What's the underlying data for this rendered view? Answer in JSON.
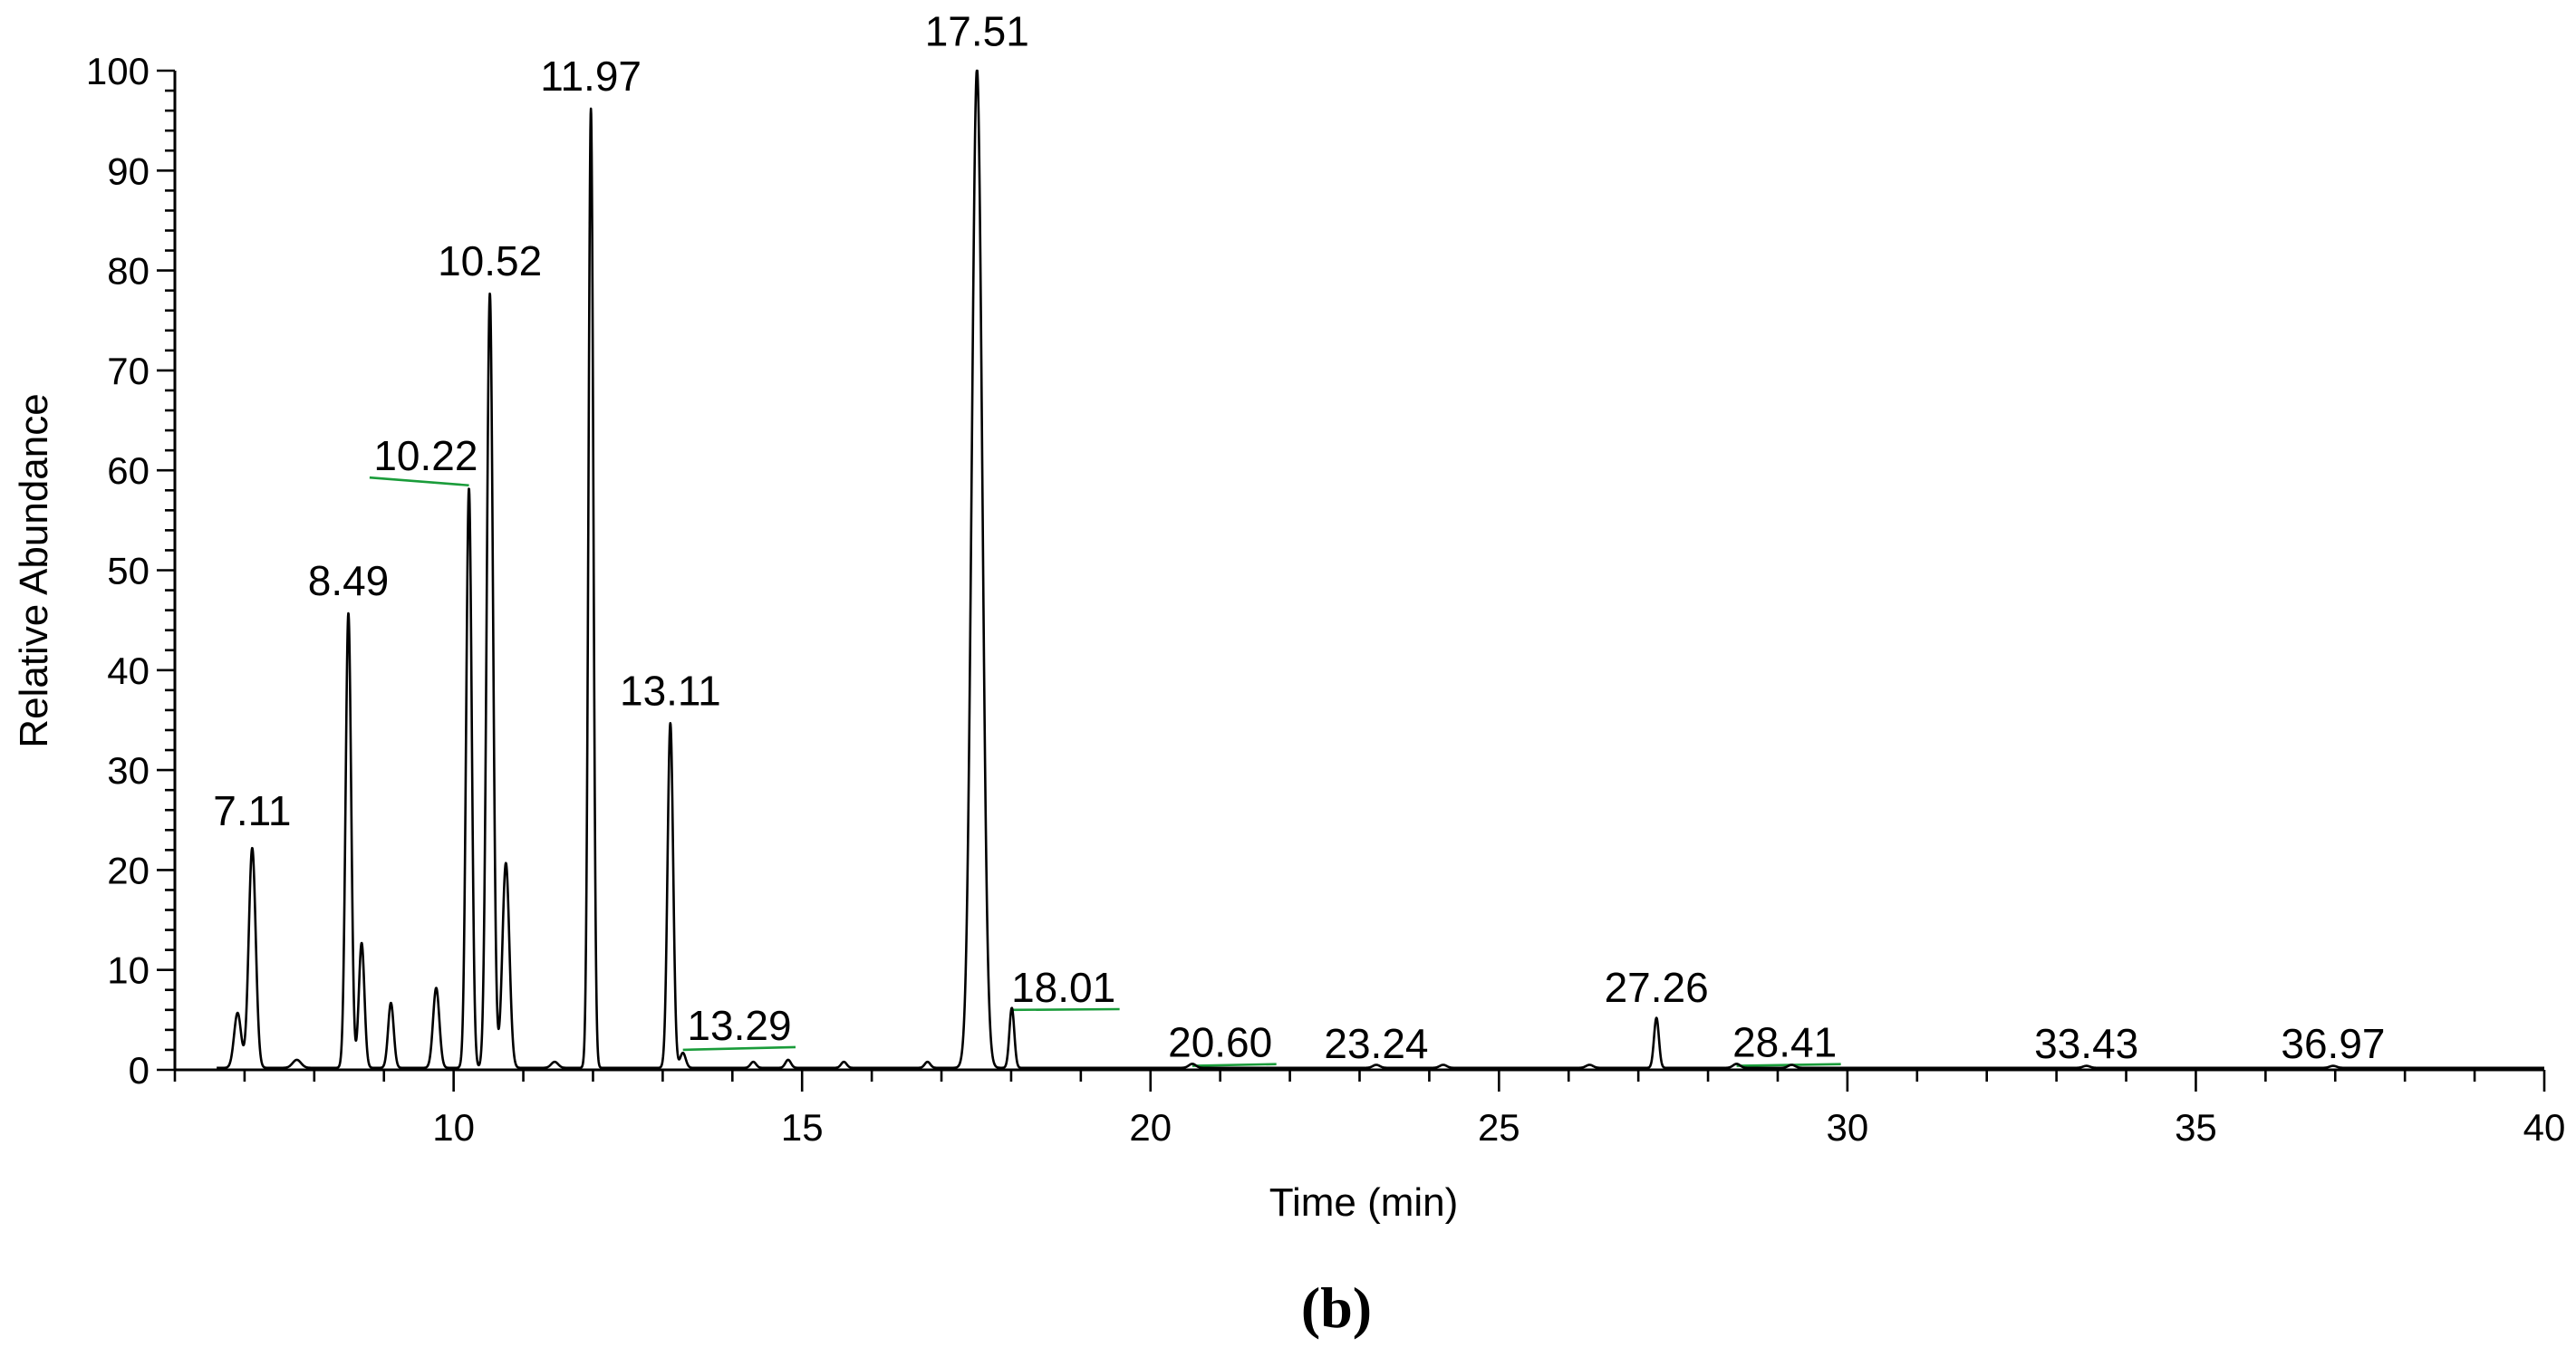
{
  "chart_data": {
    "type": "line",
    "xlabel": "Time (min)",
    "ylabel": "Relative Abundance",
    "xlim": [
      6,
      40
    ],
    "ylim": [
      0,
      100
    ],
    "x_ticks": [
      10,
      15,
      20,
      25,
      30,
      35,
      40
    ],
    "y_ticks": [
      0,
      10,
      20,
      30,
      40,
      50,
      60,
      70,
      80,
      90,
      100
    ],
    "grid": false,
    "legend": "none",
    "line_color": "#000000",
    "leader_color": "#1a9c3a",
    "baseline": 0.2,
    "peaks": [
      {
        "rt": 6.9,
        "height": 5.5,
        "width": 0.05
      },
      {
        "rt": 7.11,
        "height": 22,
        "width": 0.05
      },
      {
        "rt": 7.75,
        "height": 0.8,
        "width": 0.06
      },
      {
        "rt": 8.49,
        "height": 45.5,
        "width": 0.04
      },
      {
        "rt": 8.68,
        "height": 12.5,
        "width": 0.04
      },
      {
        "rt": 9.1,
        "height": 6.5,
        "width": 0.04
      },
      {
        "rt": 9.75,
        "height": 8,
        "width": 0.045
      },
      {
        "rt": 10.22,
        "height": 58,
        "width": 0.04
      },
      {
        "rt": 10.52,
        "height": 77.5,
        "width": 0.045
      },
      {
        "rt": 10.75,
        "height": 20.5,
        "width": 0.05
      },
      {
        "rt": 11.45,
        "height": 0.6,
        "width": 0.05
      },
      {
        "rt": 11.97,
        "height": 96,
        "width": 0.035
      },
      {
        "rt": 13.11,
        "height": 34.5,
        "width": 0.04
      },
      {
        "rt": 13.29,
        "height": 1.5,
        "width": 0.04
      },
      {
        "rt": 14.3,
        "height": 0.6,
        "width": 0.04
      },
      {
        "rt": 14.8,
        "height": 0.8,
        "width": 0.04
      },
      {
        "rt": 15.6,
        "height": 0.6,
        "width": 0.04
      },
      {
        "rt": 16.8,
        "height": 0.6,
        "width": 0.04
      },
      {
        "rt": 17.51,
        "height": 100,
        "width": 0.075
      },
      {
        "rt": 18.01,
        "height": 6,
        "width": 0.035
      },
      {
        "rt": 20.6,
        "height": 0.4,
        "width": 0.05
      },
      {
        "rt": 23.24,
        "height": 0.3,
        "width": 0.05
      },
      {
        "rt": 24.2,
        "height": 0.3,
        "width": 0.05
      },
      {
        "rt": 26.3,
        "height": 0.3,
        "width": 0.05
      },
      {
        "rt": 27.26,
        "height": 5,
        "width": 0.035
      },
      {
        "rt": 28.41,
        "height": 0.4,
        "width": 0.05
      },
      {
        "rt": 29.2,
        "height": 0.3,
        "width": 0.05
      },
      {
        "rt": 33.43,
        "height": 0.2,
        "width": 0.05
      },
      {
        "rt": 36.97,
        "height": 0.2,
        "width": 0.05
      }
    ],
    "annotations": [
      {
        "text": "7.11",
        "x": 7.11,
        "y": 24.5,
        "leader": false
      },
      {
        "text": "8.49",
        "x": 8.49,
        "y": 47.5,
        "leader": false
      },
      {
        "text": "10.22",
        "x": 9.6,
        "y": 60,
        "leader": true,
        "leader_to": [
          10.22,
          58.5
        ]
      },
      {
        "text": "10.52",
        "x": 10.52,
        "y": 79.5,
        "leader": false
      },
      {
        "text": "11.97",
        "x": 11.97,
        "y": 98,
        "leader": false
      },
      {
        "text": "13.11",
        "x": 13.11,
        "y": 36.5,
        "leader": false
      },
      {
        "text": "13.29",
        "x": 14.1,
        "y": 3.0,
        "leader": true,
        "leader_to": [
          13.29,
          2.0
        ]
      },
      {
        "text": "17.51",
        "x": 17.51,
        "y": 102.5,
        "leader": false
      },
      {
        "text": "18.01",
        "x": 18.75,
        "y": 6.8,
        "leader": true,
        "leader_to": [
          18.01,
          6.0
        ]
      },
      {
        "text": "20.60",
        "x": 21.0,
        "y": 1.3,
        "leader": true,
        "leader_to": [
          20.6,
          0.4
        ]
      },
      {
        "text": "23.24",
        "x": 23.24,
        "y": 1.2,
        "leader": false
      },
      {
        "text": "27.26",
        "x": 27.26,
        "y": 6.8,
        "leader": false
      },
      {
        "text": "28.41",
        "x": 29.1,
        "y": 1.3,
        "leader": true,
        "leader_to": [
          28.41,
          0.4
        ]
      },
      {
        "text": "33.43",
        "x": 33.43,
        "y": 1.2,
        "leader": false
      },
      {
        "text": "36.97",
        "x": 36.97,
        "y": 1.2,
        "leader": false
      }
    ]
  },
  "panel_label": "(b)"
}
